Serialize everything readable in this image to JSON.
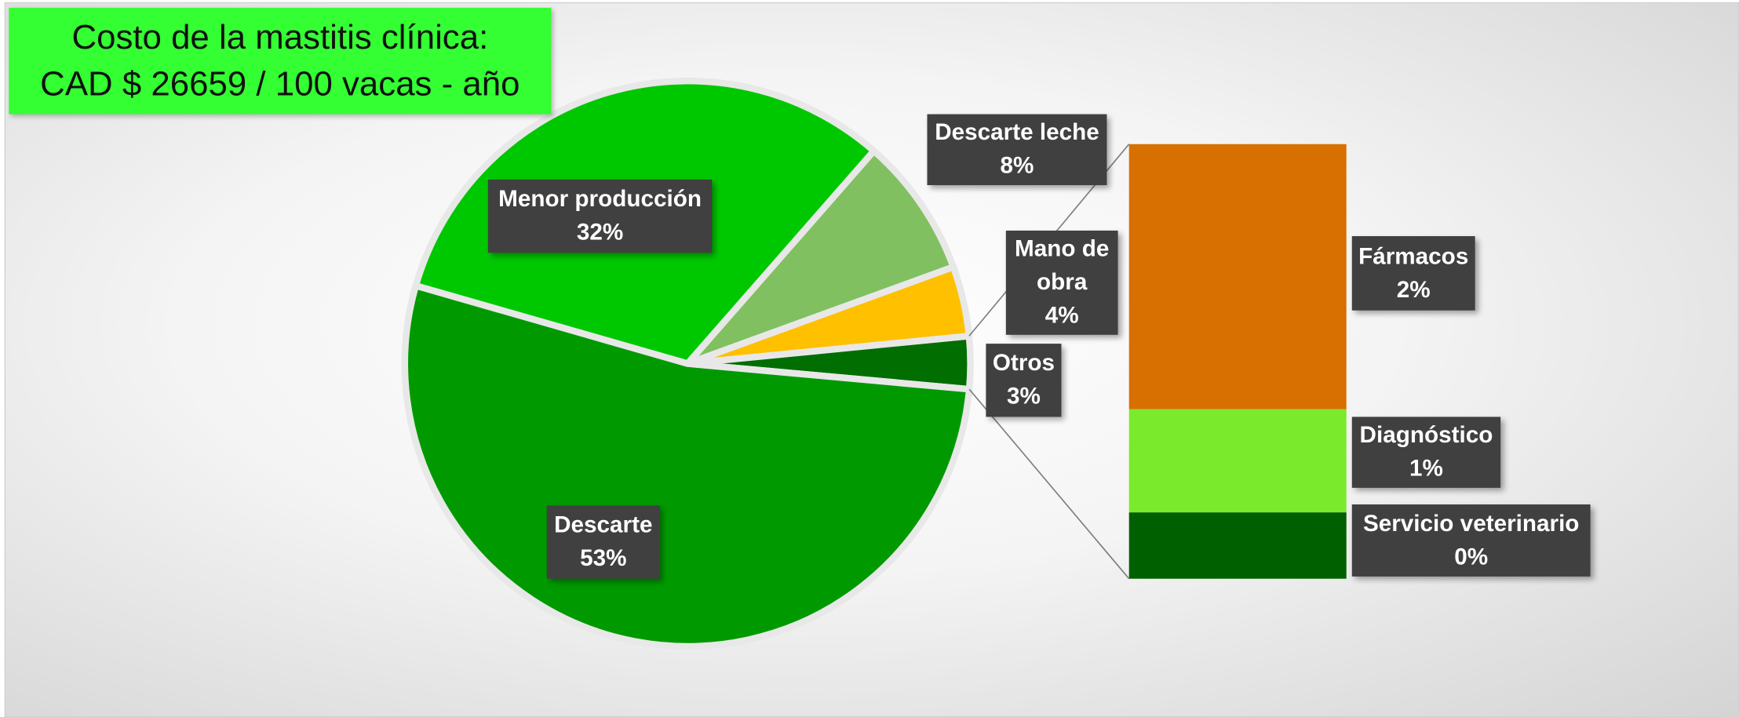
{
  "chart_data": {
    "type": "pie",
    "title": [
      "Costo de la mastitis clínica:",
      "CAD $ 26659 / 100 vacas - año"
    ],
    "categories": [
      "Menor producción",
      "Descarte leche",
      "Mano de obra",
      "Otros",
      "Descarte"
    ],
    "values": [
      32,
      8,
      4,
      3,
      53
    ],
    "value_labels": [
      "32%",
      "8%",
      "4%",
      "3%",
      "53%"
    ],
    "colors": [
      "#00c800",
      "#80c060",
      "#ffc000",
      "#006e00",
      "#009a00"
    ],
    "breakdown": {
      "type": "bar",
      "categories": [
        "Fármacos",
        "Diagnóstico",
        "Servicio veterinario"
      ],
      "values": [
        1.8,
        0.7,
        0.45
      ],
      "value_labels": [
        "2%",
        "1%",
        "0%"
      ],
      "colors": [
        "#d77000",
        "#7aea2d",
        "#006000"
      ]
    }
  }
}
